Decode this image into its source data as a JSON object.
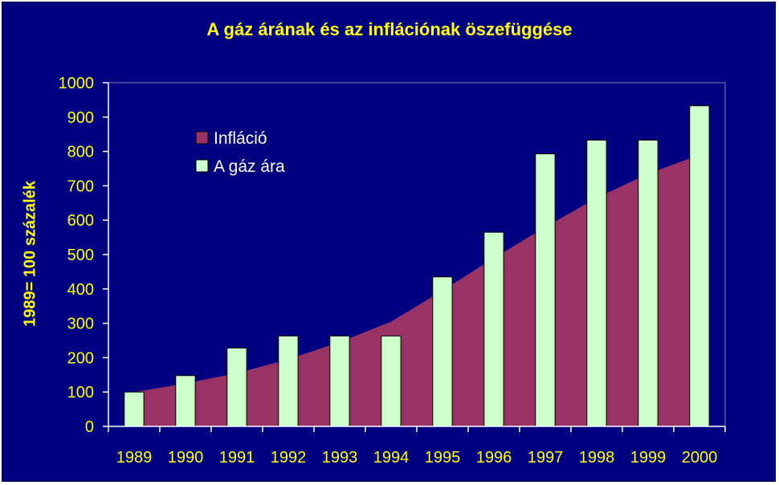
{
  "chart_data": {
    "type": "bar",
    "title": "A gáz árának és az inflációnak öszefüggése",
    "ylabel": "1989= 100 százalék",
    "xlabel": "",
    "categories": [
      "1989",
      "1990",
      "1991",
      "1992",
      "1993",
      "1994",
      "1995",
      "1996",
      "1997",
      "1998",
      "1999",
      "2000"
    ],
    "ylim": [
      0,
      1000
    ],
    "yticks": [
      0,
      100,
      200,
      300,
      400,
      500,
      600,
      700,
      800,
      900,
      1000
    ],
    "grid": false,
    "legend_position": "top-left",
    "series": [
      {
        "name": "Infláció",
        "type": "area",
        "color": "#993366",
        "values": [
          100,
          125,
          155,
          195,
          245,
          305,
          395,
          490,
          580,
          665,
          735,
          790
        ]
      },
      {
        "name": "A gáz ára",
        "type": "bar",
        "color": "#ccffcc",
        "values": [
          100,
          148,
          228,
          263,
          263,
          263,
          435,
          565,
          793,
          833,
          833,
          933
        ]
      }
    ],
    "colors": {
      "background": "#000080",
      "text": "#ffff00",
      "axis": "#ffffff"
    }
  }
}
